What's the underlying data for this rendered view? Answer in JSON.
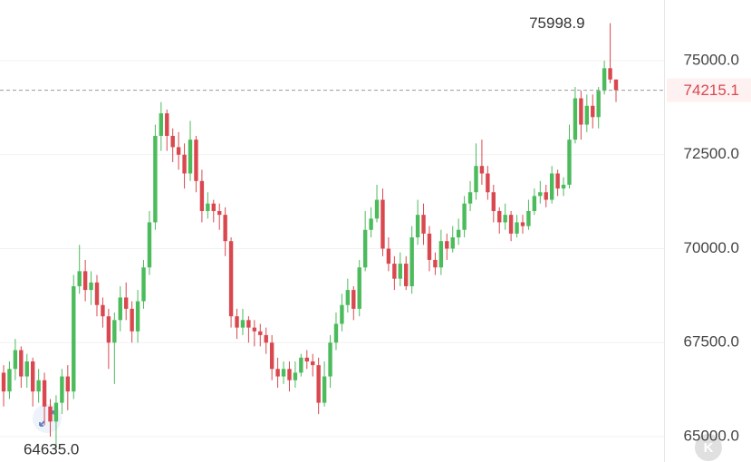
{
  "chart_data": {
    "type": "candlestick",
    "up_color": "#4cbb5c",
    "down_color": "#d9484f",
    "ylim": [
      64324,
      76615
    ],
    "yticks": [
      {
        "value": 65000,
        "label": "65000.0"
      },
      {
        "value": 67500,
        "label": "67500.0"
      },
      {
        "value": 70000,
        "label": "70000.0"
      },
      {
        "value": 72500,
        "label": "72500.0"
      },
      {
        "value": 75000,
        "label": "75000.0"
      }
    ],
    "grid": true,
    "max_label": "75998.9",
    "min_label": "64635.0",
    "last_price": 74215.1,
    "last_price_label": "74215.1",
    "open": [
      66700,
      66200,
      66800,
      67300,
      66600,
      67000,
      66200,
      66500,
      65800,
      65400,
      65900,
      66600,
      66200,
      69000,
      69400,
      68900,
      69100,
      68500,
      68200,
      67500,
      68100,
      68700,
      68400,
      67800,
      68600,
      69500,
      70700,
      73000,
      73600,
      73000,
      72700,
      72500,
      72000,
      72900,
      71800,
      71000,
      71200,
      71000,
      70900,
      70200,
      68200,
      67900,
      68100,
      67900,
      67800,
      67700,
      67500,
      66800,
      66600,
      66800,
      66500,
      66700,
      67100,
      67000,
      66900,
      65900,
      66600,
      67500,
      68000,
      68500,
      68900,
      68400,
      69500,
      70500,
      70800,
      71300,
      70000,
      69600,
      69200,
      69600,
      69000,
      70300,
      70900,
      70400,
      69700,
      69500,
      70200,
      70000,
      70300,
      70500,
      71200,
      71500,
      72200,
      72000,
      71500,
      71000,
      70700,
      70900,
      70400,
      70700,
      70600,
      71000,
      71400,
      71500,
      71300,
      72000,
      71600,
      71700,
      72900,
      74000,
      73300,
      73800,
      73500,
      74200,
      74800,
      74500
    ],
    "high": [
      66900,
      67000,
      67600,
      67400,
      67200,
      67100,
      66800,
      66700,
      66000,
      66100,
      66800,
      66900,
      69300,
      70100,
      69700,
      69400,
      69300,
      68700,
      68400,
      68300,
      69000,
      69100,
      68600,
      68900,
      69700,
      71000,
      73300,
      73900,
      73700,
      73200,
      73100,
      72800,
      73400,
      73000,
      72100,
      71500,
      71300,
      71200,
      71100,
      70300,
      68400,
      68400,
      68200,
      68100,
      68000,
      67900,
      67700,
      67100,
      67000,
      67000,
      67000,
      67200,
      67300,
      67200,
      67100,
      67000,
      67700,
      68300,
      68800,
      69200,
      69000,
      69700,
      71000,
      71100,
      71700,
      71600,
      70300,
      69800,
      69900,
      69800,
      70600,
      71300,
      71200,
      70600,
      69900,
      70500,
      70400,
      70600,
      70800,
      71400,
      71800,
      72800,
      72900,
      72200,
      71700,
      71100,
      71200,
      71000,
      70900,
      70900,
      71300,
      71600,
      71800,
      71700,
      72200,
      72100,
      71900,
      73300,
      74300,
      74200,
      74100,
      74100,
      74300,
      75000,
      75998.9,
      74500
    ],
    "low": [
      65800,
      66000,
      66500,
      66300,
      66300,
      65800,
      65900,
      65300,
      65000,
      64635,
      65600,
      65700,
      66000,
      68800,
      68600,
      68500,
      68200,
      67900,
      66800,
      66400,
      67800,
      68100,
      67500,
      67500,
      68400,
      69300,
      70500,
      72600,
      72600,
      72300,
      72100,
      71600,
      71800,
      71500,
      70700,
      70800,
      70700,
      70500,
      69800,
      67900,
      67600,
      67700,
      67500,
      67400,
      67400,
      67200,
      66500,
      66300,
      66400,
      66200,
      66300,
      66600,
      66800,
      66600,
      65600,
      65800,
      66300,
      67300,
      67800,
      68300,
      68100,
      68200,
      69400,
      70300,
      70700,
      69800,
      69400,
      68900,
      69000,
      68900,
      68800,
      70100,
      70100,
      69400,
      69300,
      69300,
      69700,
      69900,
      70100,
      70300,
      71000,
      71300,
      71700,
      71300,
      70700,
      70400,
      70500,
      70200,
      70300,
      70400,
      70500,
      70900,
      71200,
      71100,
      71200,
      71400,
      71400,
      71600,
      72800,
      72900,
      73100,
      73200,
      73200,
      74100,
      74400,
      73900
    ],
    "close": [
      66200,
      66800,
      67300,
      66600,
      67000,
      66200,
      66500,
      65800,
      65400,
      65900,
      66600,
      66200,
      69000,
      69400,
      68900,
      69100,
      68500,
      68200,
      67500,
      68100,
      68700,
      68400,
      67800,
      68600,
      69500,
      70700,
      73000,
      73600,
      73000,
      72700,
      72500,
      72000,
      72900,
      71800,
      71000,
      71200,
      71000,
      70900,
      70200,
      68200,
      67900,
      68100,
      67900,
      67800,
      67700,
      67500,
      66800,
      66600,
      66800,
      66500,
      66700,
      67100,
      67000,
      66900,
      65900,
      66600,
      67500,
      68000,
      68500,
      68900,
      68400,
      69500,
      70500,
      70800,
      71300,
      70000,
      69600,
      69200,
      69600,
      69000,
      70300,
      70900,
      70400,
      69700,
      69500,
      70200,
      70000,
      70300,
      70500,
      71200,
      71500,
      72200,
      72000,
      71500,
      71000,
      70700,
      70900,
      70400,
      70700,
      70600,
      71000,
      71400,
      71500,
      71300,
      72000,
      71600,
      71700,
      72900,
      74000,
      73300,
      73800,
      73500,
      74200,
      74800,
      74500,
      74215.1
    ]
  }
}
